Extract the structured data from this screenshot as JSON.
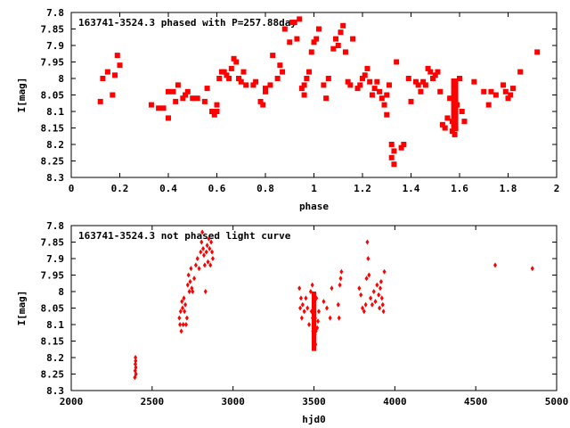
{
  "chart_data": [
    {
      "type": "scatter",
      "title": "163741-3524.3 phased with P=257.88day",
      "xlabel": "phase",
      "ylabel": "I[mag]",
      "xlim": [
        0,
        2
      ],
      "ylim": [
        8.3,
        7.8
      ],
      "y_inverted": true,
      "xticks": [
        "0",
        "0.2",
        "0.4",
        "0.6",
        "0.8",
        "1",
        "1.2",
        "1.4",
        "1.6",
        "1.8",
        "2"
      ],
      "yticks": [
        "7.8",
        "7.85",
        "7.9",
        "7.95",
        "8",
        "8.05",
        "8.1",
        "8.15",
        "8.2",
        "8.25",
        "8.3"
      ],
      "grid": false,
      "marker_color": "#ff0000",
      "points": [
        [
          0.12,
          8.07
        ],
        [
          0.13,
          8.0
        ],
        [
          0.15,
          7.98
        ],
        [
          0.17,
          8.05
        ],
        [
          0.18,
          7.99
        ],
        [
          0.19,
          7.93
        ],
        [
          0.2,
          7.96
        ],
        [
          0.33,
          8.08
        ],
        [
          0.36,
          8.09
        ],
        [
          0.38,
          8.09
        ],
        [
          0.4,
          8.12
        ],
        [
          0.4,
          8.04
        ],
        [
          0.42,
          8.04
        ],
        [
          0.43,
          8.07
        ],
        [
          0.44,
          8.02
        ],
        [
          0.46,
          8.06
        ],
        [
          0.47,
          8.05
        ],
        [
          0.48,
          8.04
        ],
        [
          0.5,
          8.06
        ],
        [
          0.52,
          8.06
        ],
        [
          0.55,
          8.07
        ],
        [
          0.56,
          8.03
        ],
        [
          0.58,
          8.1
        ],
        [
          0.59,
          8.11
        ],
        [
          0.6,
          8.1
        ],
        [
          0.6,
          8.08
        ],
        [
          0.61,
          8.0
        ],
        [
          0.62,
          7.98
        ],
        [
          0.63,
          7.98
        ],
        [
          0.64,
          7.99
        ],
        [
          0.65,
          8.0
        ],
        [
          0.66,
          7.97
        ],
        [
          0.67,
          7.94
        ],
        [
          0.68,
          7.95
        ],
        [
          0.69,
          8.0
        ],
        [
          0.7,
          8.01
        ],
        [
          0.71,
          7.98
        ],
        [
          0.72,
          8.02
        ],
        [
          0.75,
          8.02
        ],
        [
          0.76,
          8.01
        ],
        [
          0.78,
          8.07
        ],
        [
          0.79,
          8.08
        ],
        [
          0.8,
          8.04
        ],
        [
          0.8,
          8.03
        ],
        [
          0.82,
          8.02
        ],
        [
          0.83,
          7.93
        ],
        [
          0.85,
          8.0
        ],
        [
          0.86,
          7.96
        ],
        [
          0.87,
          7.98
        ],
        [
          0.88,
          7.85
        ],
        [
          0.9,
          7.89
        ],
        [
          0.91,
          7.83
        ],
        [
          0.92,
          7.83
        ],
        [
          0.93,
          7.88
        ],
        [
          0.94,
          7.82
        ],
        [
          0.95,
          8.03
        ],
        [
          0.96,
          8.05
        ],
        [
          0.96,
          8.02
        ],
        [
          0.97,
          8.0
        ],
        [
          0.98,
          7.98
        ],
        [
          0.99,
          7.92
        ],
        [
          1.0,
          7.89
        ],
        [
          1.01,
          7.88
        ],
        [
          1.02,
          7.85
        ],
        [
          1.04,
          8.02
        ],
        [
          1.05,
          8.06
        ],
        [
          1.06,
          8.0
        ],
        [
          1.08,
          7.91
        ],
        [
          1.09,
          7.88
        ],
        [
          1.1,
          7.9
        ],
        [
          1.11,
          7.86
        ],
        [
          1.12,
          7.84
        ],
        [
          1.13,
          7.92
        ],
        [
          1.14,
          8.01
        ],
        [
          1.15,
          8.02
        ],
        [
          1.16,
          7.88
        ],
        [
          1.18,
          8.03
        ],
        [
          1.19,
          8.02
        ],
        [
          1.2,
          8.0
        ],
        [
          1.21,
          7.99
        ],
        [
          1.22,
          7.97
        ],
        [
          1.23,
          8.01
        ],
        [
          1.24,
          8.05
        ],
        [
          1.25,
          8.03
        ],
        [
          1.26,
          8.01
        ],
        [
          1.27,
          8.04
        ],
        [
          1.28,
          8.06
        ],
        [
          1.29,
          8.08
        ],
        [
          1.3,
          8.11
        ],
        [
          1.3,
          8.05
        ],
        [
          1.31,
          8.02
        ],
        [
          1.32,
          8.2
        ],
        [
          1.32,
          8.24
        ],
        [
          1.33,
          8.26
        ],
        [
          1.33,
          8.22
        ],
        [
          1.34,
          7.95
        ],
        [
          1.36,
          8.21
        ],
        [
          1.37,
          8.2
        ],
        [
          1.39,
          8.0
        ],
        [
          1.4,
          8.07
        ],
        [
          1.42,
          8.01
        ],
        [
          1.43,
          8.02
        ],
        [
          1.44,
          8.04
        ],
        [
          1.45,
          8.01
        ],
        [
          1.46,
          8.02
        ],
        [
          1.47,
          7.97
        ],
        [
          1.48,
          7.98
        ],
        [
          1.49,
          8.0
        ],
        [
          1.5,
          7.99
        ],
        [
          1.51,
          7.98
        ],
        [
          1.52,
          8.04
        ],
        [
          1.53,
          8.14
        ],
        [
          1.54,
          8.15
        ],
        [
          1.55,
          8.12
        ],
        [
          1.56,
          8.06
        ],
        [
          1.57,
          8.13
        ],
        [
          1.57,
          8.16
        ],
        [
          1.58,
          8.04
        ],
        [
          1.58,
          8.17
        ],
        [
          1.59,
          8.08
        ],
        [
          1.6,
          8.0
        ],
        [
          1.61,
          8.1
        ],
        [
          1.62,
          8.13
        ],
        [
          1.66,
          8.01
        ],
        [
          1.7,
          8.04
        ],
        [
          1.72,
          8.08
        ],
        [
          1.73,
          8.04
        ],
        [
          1.75,
          8.05
        ],
        [
          1.78,
          8.02
        ],
        [
          1.79,
          8.04
        ],
        [
          1.8,
          8.06
        ],
        [
          1.81,
          8.05
        ],
        [
          1.82,
          8.03
        ],
        [
          1.85,
          7.98
        ],
        [
          1.92,
          7.92
        ]
      ],
      "dense_column": {
        "x": 1.58,
        "y_min": 8.0,
        "y_max": 8.16
      }
    },
    {
      "type": "scatter",
      "title": "163741-3524.3 not phased light curve",
      "xlabel": "hjd0",
      "ylabel": "I[mag]",
      "xlim": [
        2000,
        5000
      ],
      "ylim": [
        8.3,
        7.8
      ],
      "y_inverted": true,
      "xticks": [
        "2000",
        "2500",
        "3000",
        "3500",
        "4000",
        "4500",
        "5000"
      ],
      "yticks": [
        "7.8",
        "7.85",
        "7.9",
        "7.95",
        "8",
        "8.05",
        "8.1",
        "8.15",
        "8.2",
        "8.25",
        "8.3"
      ],
      "grid": false,
      "marker_color": "#ff0000",
      "points": [
        [
          2393,
          8.26
        ],
        [
          2395,
          8.24
        ],
        [
          2396,
          8.22
        ],
        [
          2397,
          8.2
        ],
        [
          2398,
          8.21
        ],
        [
          2399,
          8.23
        ],
        [
          2400,
          8.25
        ],
        [
          2668,
          8.08
        ],
        [
          2672,
          8.1
        ],
        [
          2676,
          8.06
        ],
        [
          2680,
          8.12
        ],
        [
          2684,
          8.03
        ],
        [
          2688,
          8.05
        ],
        [
          2692,
          8.1
        ],
        [
          2696,
          8.02
        ],
        [
          2700,
          8.06
        ],
        [
          2705,
          8.04
        ],
        [
          2710,
          8.1
        ],
        [
          2715,
          8.08
        ],
        [
          2720,
          7.98
        ],
        [
          2725,
          7.95
        ],
        [
          2730,
          8.0
        ],
        [
          2735,
          7.97
        ],
        [
          2740,
          7.93
        ],
        [
          2745,
          7.99
        ],
        [
          2750,
          8.0
        ],
        [
          2760,
          7.96
        ],
        [
          2770,
          7.92
        ],
        [
          2780,
          7.9
        ],
        [
          2790,
          7.93
        ],
        [
          2800,
          7.88
        ],
        [
          2805,
          7.85
        ],
        [
          2810,
          7.82
        ],
        [
          2815,
          7.87
        ],
        [
          2820,
          7.89
        ],
        [
          2825,
          7.92
        ],
        [
          2830,
          8.0
        ],
        [
          2835,
          7.88
        ],
        [
          2840,
          7.86
        ],
        [
          2845,
          7.91
        ],
        [
          2850,
          7.84
        ],
        [
          2855,
          7.87
        ],
        [
          2860,
          7.92
        ],
        [
          2865,
          7.85
        ],
        [
          2870,
          7.88
        ],
        [
          2875,
          7.9
        ],
        [
          3410,
          7.99
        ],
        [
          3415,
          8.05
        ],
        [
          3420,
          8.02
        ],
        [
          3425,
          8.08
        ],
        [
          3430,
          8.04
        ],
        [
          3440,
          8.06
        ],
        [
          3450,
          8.02
        ],
        [
          3460,
          8.05
        ],
        [
          3470,
          8.1
        ],
        [
          3480,
          8.0
        ],
        [
          3485,
          8.06
        ],
        [
          3490,
          7.98
        ],
        [
          3492,
          8.08
        ],
        [
          3494,
          8.12
        ],
        [
          3496,
          8.14
        ],
        [
          3498,
          8.16
        ],
        [
          3500,
          8.17
        ],
        [
          3502,
          8.04
        ],
        [
          3504,
          8.1
        ],
        [
          3506,
          8.13
        ],
        [
          3508,
          8.08
        ],
        [
          3510,
          8.16
        ],
        [
          3512,
          8.12
        ],
        [
          3515,
          8.02
        ],
        [
          3520,
          8.11
        ],
        [
          3525,
          8.09
        ],
        [
          3530,
          8.06
        ],
        [
          3560,
          8.03
        ],
        [
          3580,
          8.05
        ],
        [
          3600,
          8.08
        ],
        [
          3610,
          7.99
        ],
        [
          3650,
          8.04
        ],
        [
          3655,
          8.08
        ],
        [
          3660,
          7.98
        ],
        [
          3665,
          7.96
        ],
        [
          3670,
          7.94
        ],
        [
          3780,
          7.99
        ],
        [
          3790,
          8.01
        ],
        [
          3800,
          8.05
        ],
        [
          3810,
          8.06
        ],
        [
          3820,
          8.04
        ],
        [
          3825,
          7.96
        ],
        [
          3830,
          7.85
        ],
        [
          3835,
          7.9
        ],
        [
          3840,
          7.95
        ],
        [
          3850,
          8.02
        ],
        [
          3860,
          8.04
        ],
        [
          3870,
          8.0
        ],
        [
          3880,
          8.03
        ],
        [
          3890,
          7.98
        ],
        [
          3900,
          8.01
        ],
        [
          3905,
          8.05
        ],
        [
          3910,
          7.99
        ],
        [
          3915,
          7.97
        ],
        [
          3920,
          8.02
        ],
        [
          3925,
          8.04
        ],
        [
          3930,
          8.06
        ],
        [
          3935,
          7.94
        ],
        [
          4620,
          7.92
        ],
        [
          4850,
          7.93
        ]
      ],
      "dense_column": {
        "x": 3500,
        "y_min": 8.0,
        "y_max": 8.18
      }
    }
  ]
}
